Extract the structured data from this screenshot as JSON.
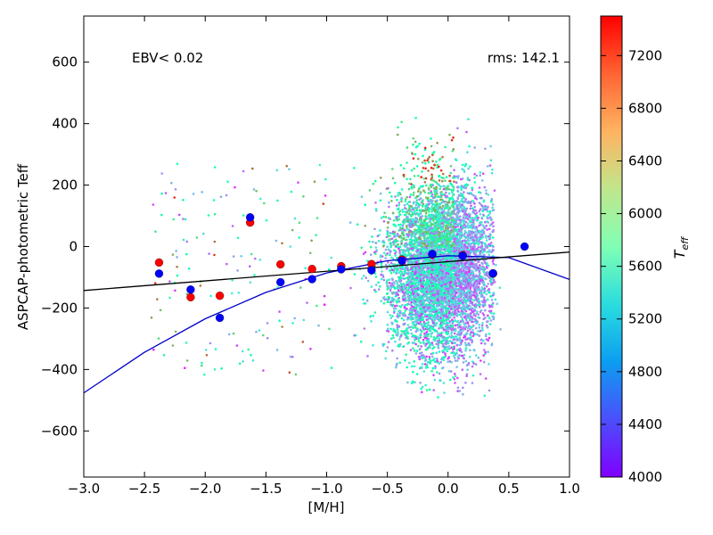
{
  "chart_data": {
    "type": "scatter",
    "xlabel": "[M/H]",
    "ylabel": "ASPCAP-photometric Teff",
    "xlim": [
      -3.0,
      1.0
    ],
    "ylim": [
      -750,
      750
    ],
    "xticks": [
      -3.0,
      -2.5,
      -2.0,
      -1.5,
      -1.0,
      -0.5,
      0.0,
      0.5,
      1.0
    ],
    "xtick_labels": [
      "−3.0",
      "−2.5",
      "−2.0",
      "−1.5",
      "−1.0",
      "−0.5",
      "0.0",
      "0.5",
      "1.0"
    ],
    "yticks": [
      -600,
      -400,
      -200,
      0,
      200,
      400,
      600
    ],
    "ytick_labels": [
      "−600",
      "−400",
      "−200",
      "0",
      "200",
      "400",
      "600"
    ],
    "annotations": {
      "left": "EBV<  0.02",
      "right": "rms:  142.1"
    },
    "grid": false,
    "colorbar": {
      "label": "T_eff",
      "label_main": "T",
      "label_sub": "eff",
      "range": [
        4000,
        7500
      ],
      "ticks": [
        4000,
        4400,
        4800,
        5200,
        5600,
        6000,
        6400,
        6800,
        7200
      ],
      "tick_labels": [
        "4000",
        "4400",
        "4800",
        "5200",
        "5600",
        "6000",
        "6400",
        "6800",
        "7200"
      ],
      "colormap": "rainbow"
    },
    "binned_blue": {
      "color": "#0000ff",
      "x": [
        -2.38,
        -2.12,
        -1.88,
        -1.63,
        -1.38,
        -1.12,
        -0.88,
        -0.63,
        -0.38,
        -0.13,
        0.12,
        0.37,
        0.63
      ],
      "y": [
        -88,
        -140,
        -232,
        95,
        -116,
        -106,
        -74,
        -77,
        -46,
        -24,
        -30,
        -87,
        0
      ]
    },
    "binned_red": {
      "color": "#ff0000",
      "x": [
        -2.38,
        -2.12,
        -1.88,
        -1.63,
        -1.38,
        -1.12,
        -0.88,
        -0.63,
        -0.38,
        -0.13,
        0.12,
        0.37
      ],
      "y": [
        -52,
        -165,
        -160,
        78,
        -58,
        -73,
        -64,
        -57,
        -42,
        -26,
        -28,
        -88
      ]
    },
    "fit_linear": {
      "color": "#000000",
      "x": [
        -3.0,
        1.0
      ],
      "y": [
        -143,
        -18
      ]
    },
    "fit_quadratic": {
      "color": "#0000cc",
      "x": [
        -3.0,
        -2.5,
        -2.0,
        -1.5,
        -1.0,
        -0.5,
        0.0,
        0.5,
        1.0
      ],
      "y": [
        -476,
        -344,
        -235,
        -149,
        -86,
        -46,
        -30,
        -36,
        -107
      ]
    }
  }
}
